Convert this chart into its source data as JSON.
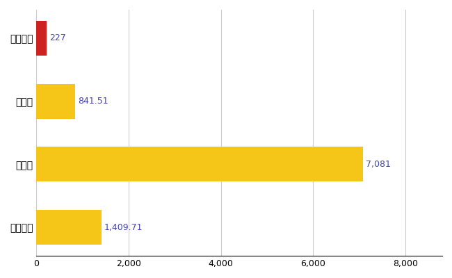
{
  "categories": [
    "嘉手納町",
    "県平均",
    "県最大",
    "全国平均"
  ],
  "values": [
    227,
    841.51,
    7081,
    1409.71
  ],
  "labels": [
    "227",
    "841.51",
    "7,081",
    "1,409.71"
  ],
  "bar_colors": [
    "#cc2222",
    "#f5c518",
    "#f5c518",
    "#f5c518"
  ],
  "xlim": [
    0,
    8800
  ],
  "xticks": [
    0,
    2000,
    4000,
    6000,
    8000
  ],
  "background_color": "#ffffff",
  "grid_color": "#cccccc",
  "label_color": "#4444aa",
  "figsize": [
    6.5,
    4.0
  ],
  "dpi": 100
}
